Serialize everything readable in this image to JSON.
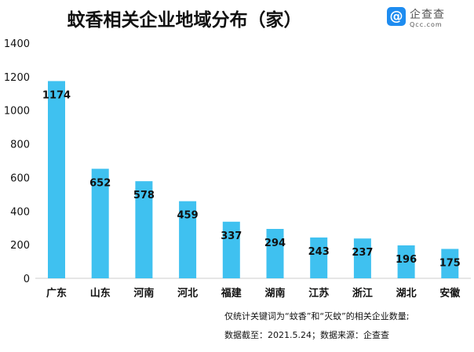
{
  "chart_data": {
    "type": "bar",
    "title": "蚊香相关企业地域分布（家）",
    "categories": [
      "广东",
      "山东",
      "河南",
      "河北",
      "福建",
      "湖南",
      "江苏",
      "浙江",
      "湖北",
      "安徽"
    ],
    "values": [
      1174,
      652,
      578,
      459,
      337,
      294,
      243,
      237,
      196,
      175
    ],
    "ylim": [
      0,
      1400
    ],
    "yticks": [
      0,
      200,
      400,
      600,
      800,
      1000,
      1200,
      1400
    ],
    "xlabel": "",
    "ylabel": "",
    "bar_color": "#3fc1f0"
  },
  "logo": {
    "cn": "企查查",
    "en": "Qcc.com"
  },
  "notes": [
    "仅统计关键词为“蚊香”和“灭蚊”的相关企业数量;",
    "数据截至：2021.5.24；数据来源：企查查"
  ]
}
